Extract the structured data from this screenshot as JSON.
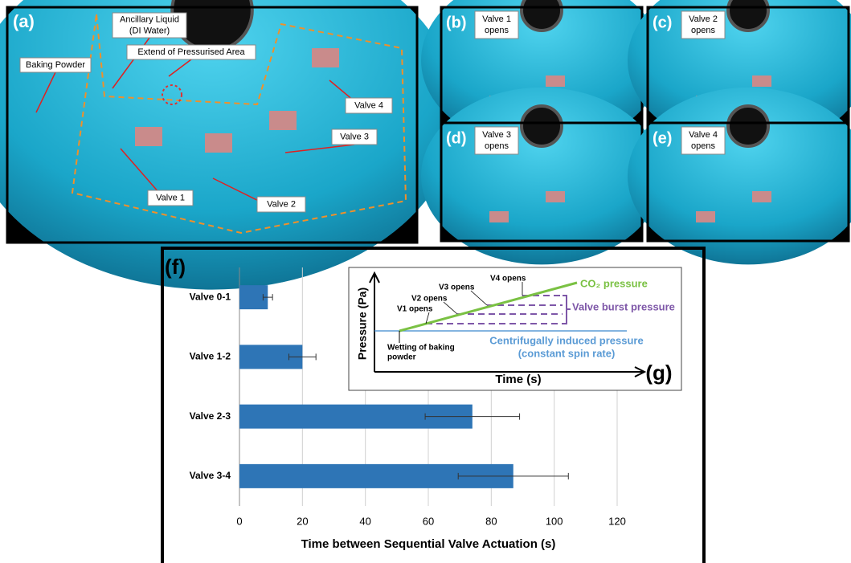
{
  "panel_a": {
    "label": "(a)",
    "annotations": [
      {
        "lines": [
          "Ancillary Liquid",
          "(DI Water)"
        ]
      },
      {
        "lines": [
          "Extend of Pressurised Area"
        ]
      },
      {
        "lines": [
          "Baking Powder"
        ]
      },
      {
        "lines": [
          "Valve 4"
        ]
      },
      {
        "lines": [
          "Valve 3"
        ]
      },
      {
        "lines": [
          "Valve 1"
        ]
      },
      {
        "lines": [
          "Valve 2"
        ]
      }
    ]
  },
  "small_panels": [
    {
      "label": "(b)",
      "lines": [
        "Valve 1",
        "opens"
      ]
    },
    {
      "label": "(c)",
      "lines": [
        "Valve 2",
        "opens"
      ]
    },
    {
      "label": "(d)",
      "lines": [
        "Valve 3",
        "opens"
      ]
    },
    {
      "label": "(e)",
      "lines": [
        "Valve 4",
        "opens"
      ]
    }
  ],
  "chart_data": {
    "type": "hbar",
    "panel_label": "(f)",
    "categories": [
      "Valve 0-1",
      "Valve 1-2",
      "Valve 2-3",
      "Valve 3-4"
    ],
    "values": [
      9,
      20,
      74,
      87
    ],
    "errors": [
      1.5,
      4.3,
      15,
      17.5
    ],
    "color": "#2e75b6",
    "xlim": [
      0,
      120
    ],
    "xticks": [
      0,
      20,
      40,
      60,
      80,
      100,
      120
    ],
    "grid": true,
    "xlabel": "Time between Sequential Valve Actuation (s)"
  },
  "schematic": {
    "label": "(g)",
    "ylabel": "Pressure (Pa)",
    "xlabel": "Time (s)",
    "co2": "CO₂ pressure",
    "burst": "Valve burst pressure",
    "centrifugal": [
      "Centrifugally induced pressure",
      "(constant spin rate)"
    ],
    "wetting": [
      "Wetting of baking",
      "powder"
    ],
    "opens": [
      "V1 opens",
      "V2 opens",
      "V3 opens",
      "V4 opens"
    ]
  }
}
